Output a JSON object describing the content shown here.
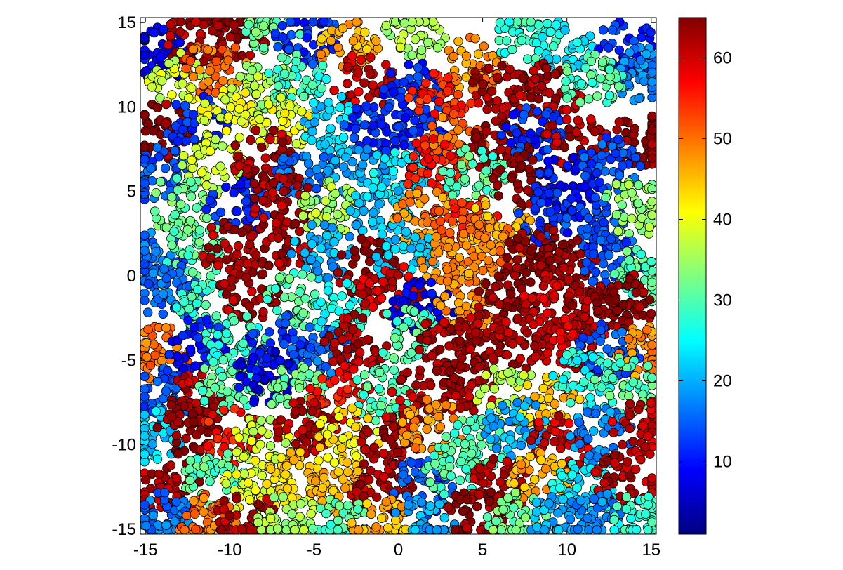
{
  "chart_data": {
    "type": "scatter",
    "title": "",
    "xlabel": "",
    "ylabel": "",
    "xlim": [
      -15.3,
      15.3
    ],
    "ylim": [
      -15.3,
      15.3
    ],
    "grid": false,
    "xticks": [
      -15,
      -10,
      -5,
      0,
      5,
      10,
      15
    ],
    "yticks": [
      -15,
      -10,
      -5,
      0,
      5,
      10,
      15
    ],
    "marker": "filled-circle-black-edge",
    "colormap": "jet",
    "colorbar": {
      "range": [
        1,
        65
      ],
      "ticks": [
        10,
        20,
        30,
        40,
        50,
        60
      ],
      "placement": "right"
    },
    "jet_stops": [
      "#000080",
      "#0000ff",
      "#00ffff",
      "#ffff00",
      "#ff0000",
      "#800000"
    ],
    "clusters": [
      {
        "x": -14.2,
        "y": 13.2,
        "value": 8
      },
      {
        "x": -12.0,
        "y": 14.0,
        "value": 62
      },
      {
        "x": -9.5,
        "y": 14.6,
        "value": 64
      },
      {
        "x": -7.5,
        "y": 14.8,
        "value": 32
      },
      {
        "x": -5.5,
        "y": 14.2,
        "value": 12
      },
      {
        "x": -3.0,
        "y": 13.8,
        "value": 46
      },
      {
        "x": 1.0,
        "y": 14.6,
        "value": 36
      },
      {
        "x": 4.5,
        "y": 12.5,
        "value": 48
      },
      {
        "x": 7.5,
        "y": 14.0,
        "value": 28
      },
      {
        "x": 10.0,
        "y": 13.5,
        "value": 24
      },
      {
        "x": 13.5,
        "y": 13.5,
        "value": 12
      },
      {
        "x": 14.6,
        "y": 12.0,
        "value": 18
      },
      {
        "x": -13.0,
        "y": 11.5,
        "value": 38
      },
      {
        "x": -10.8,
        "y": 12.3,
        "value": 50
      },
      {
        "x": -8.0,
        "y": 11.0,
        "value": 36
      },
      {
        "x": -6.0,
        "y": 11.5,
        "value": 28
      },
      {
        "x": -2.0,
        "y": 11.5,
        "value": 60
      },
      {
        "x": 1.0,
        "y": 11.0,
        "value": 12
      },
      {
        "x": 2.5,
        "y": 10.5,
        "value": 55
      },
      {
        "x": 6.0,
        "y": 11.0,
        "value": 62
      },
      {
        "x": 9.0,
        "y": 11.0,
        "value": 62
      },
      {
        "x": 11.5,
        "y": 11.5,
        "value": 30
      },
      {
        "x": -14.0,
        "y": 8.6,
        "value": 64
      },
      {
        "x": -12.0,
        "y": 9.0,
        "value": 12
      },
      {
        "x": -10.0,
        "y": 9.5,
        "value": 40
      },
      {
        "x": -7.0,
        "y": 9.0,
        "value": 40
      },
      {
        "x": -4.0,
        "y": 9.0,
        "value": 22
      },
      {
        "x": -1.5,
        "y": 8.5,
        "value": 12
      },
      {
        "x": 1.0,
        "y": 8.0,
        "value": 12
      },
      {
        "x": 3.5,
        "y": 8.0,
        "value": 50
      },
      {
        "x": 6.0,
        "y": 7.5,
        "value": 64
      },
      {
        "x": 8.0,
        "y": 8.5,
        "value": 12
      },
      {
        "x": 10.5,
        "y": 8.0,
        "value": 62
      },
      {
        "x": 14.5,
        "y": 8.0,
        "value": 64
      },
      {
        "x": -14.2,
        "y": 6.0,
        "value": 14
      },
      {
        "x": -11.0,
        "y": 6.5,
        "value": 38
      },
      {
        "x": -8.0,
        "y": 7.0,
        "value": 62
      },
      {
        "x": -5.5,
        "y": 6.0,
        "value": 16
      },
      {
        "x": -2.5,
        "y": 6.0,
        "value": 20
      },
      {
        "x": 0.0,
        "y": 6.0,
        "value": 24
      },
      {
        "x": 2.0,
        "y": 6.5,
        "value": 56
      },
      {
        "x": 4.5,
        "y": 6.0,
        "value": 30
      },
      {
        "x": 7.5,
        "y": 5.5,
        "value": 64
      },
      {
        "x": 10.0,
        "y": 5.5,
        "value": 10
      },
      {
        "x": 12.5,
        "y": 6.5,
        "value": 14
      },
      {
        "x": -13.0,
        "y": 4.2,
        "value": 32
      },
      {
        "x": -9.5,
        "y": 4.0,
        "value": 12
      },
      {
        "x": -7.0,
        "y": 4.5,
        "value": 62
      },
      {
        "x": -4.0,
        "y": 4.0,
        "value": 36
      },
      {
        "x": -1.0,
        "y": 4.0,
        "value": 22
      },
      {
        "x": 1.5,
        "y": 3.5,
        "value": 48
      },
      {
        "x": 4.0,
        "y": 3.5,
        "value": 54
      },
      {
        "x": 6.0,
        "y": 3.0,
        "value": 46
      },
      {
        "x": 9.0,
        "y": 3.5,
        "value": 12
      },
      {
        "x": 11.5,
        "y": 3.0,
        "value": 14
      },
      {
        "x": 14.0,
        "y": 4.0,
        "value": 34
      },
      {
        "x": -14.5,
        "y": 1.0,
        "value": 16
      },
      {
        "x": -12.0,
        "y": 1.5,
        "value": 30
      },
      {
        "x": -10.0,
        "y": 1.5,
        "value": 62
      },
      {
        "x": -7.0,
        "y": 2.0,
        "value": 62
      },
      {
        "x": -4.5,
        "y": 1.5,
        "value": 20
      },
      {
        "x": -2.0,
        "y": 0.5,
        "value": 64
      },
      {
        "x": 0.5,
        "y": 1.0,
        "value": 22
      },
      {
        "x": 3.0,
        "y": 1.0,
        "value": 48
      },
      {
        "x": 5.5,
        "y": 1.5,
        "value": 50
      },
      {
        "x": 8.0,
        "y": 1.5,
        "value": 64
      },
      {
        "x": 10.0,
        "y": 0.5,
        "value": 64
      },
      {
        "x": 12.5,
        "y": 1.0,
        "value": 14
      },
      {
        "x": 14.5,
        "y": 0.0,
        "value": 30
      },
      {
        "x": -13.5,
        "y": -1.0,
        "value": 16
      },
      {
        "x": -11.5,
        "y": -2.0,
        "value": 28
      },
      {
        "x": -9.0,
        "y": -1.0,
        "value": 62
      },
      {
        "x": -6.0,
        "y": -1.5,
        "value": 30
      },
      {
        "x": -3.5,
        "y": -2.0,
        "value": 26
      },
      {
        "x": -0.5,
        "y": -1.0,
        "value": 60
      },
      {
        "x": 1.5,
        "y": -2.0,
        "value": 8
      },
      {
        "x": 4.0,
        "y": -1.5,
        "value": 48
      },
      {
        "x": 6.5,
        "y": -1.5,
        "value": 64
      },
      {
        "x": 9.0,
        "y": -1.5,
        "value": 60
      },
      {
        "x": 11.5,
        "y": -2.0,
        "value": 62
      },
      {
        "x": 13.5,
        "y": -1.5,
        "value": 64
      },
      {
        "x": -14.3,
        "y": -4.5,
        "value": 50
      },
      {
        "x": -12.0,
        "y": -4.0,
        "value": 10
      },
      {
        "x": -9.5,
        "y": -4.0,
        "value": 28
      },
      {
        "x": -7.0,
        "y": -4.0,
        "value": 12
      },
      {
        "x": -4.5,
        "y": -4.5,
        "value": 16
      },
      {
        "x": -2.5,
        "y": -4.0,
        "value": 62
      },
      {
        "x": 0.5,
        "y": -3.5,
        "value": 30
      },
      {
        "x": 3.0,
        "y": -4.0,
        "value": 62
      },
      {
        "x": 5.0,
        "y": -4.0,
        "value": 62
      },
      {
        "x": 7.5,
        "y": -4.0,
        "value": 62
      },
      {
        "x": 10.5,
        "y": -4.0,
        "value": 60
      },
      {
        "x": 12.5,
        "y": -4.5,
        "value": 14
      },
      {
        "x": 14.8,
        "y": -4.5,
        "value": 48
      },
      {
        "x": -14.0,
        "y": -7.0,
        "value": 14
      },
      {
        "x": -12.0,
        "y": -7.5,
        "value": 62
      },
      {
        "x": -10.0,
        "y": -6.5,
        "value": 30
      },
      {
        "x": -8.0,
        "y": -6.0,
        "value": 8
      },
      {
        "x": -6.0,
        "y": -7.0,
        "value": 32
      },
      {
        "x": -3.5,
        "y": -7.0,
        "value": 56
      },
      {
        "x": -1.0,
        "y": -7.0,
        "value": 30
      },
      {
        "x": 1.5,
        "y": -7.0,
        "value": 62
      },
      {
        "x": 4.0,
        "y": -6.5,
        "value": 62
      },
      {
        "x": 6.5,
        "y": -7.0,
        "value": 36
      },
      {
        "x": 9.0,
        "y": -7.5,
        "value": 44
      },
      {
        "x": 11.0,
        "y": -6.0,
        "value": 26
      },
      {
        "x": 13.5,
        "y": -6.5,
        "value": 30
      },
      {
        "x": -14.5,
        "y": -9.5,
        "value": 22
      },
      {
        "x": -12.5,
        "y": -9.0,
        "value": 64
      },
      {
        "x": -10.0,
        "y": -9.5,
        "value": 56
      },
      {
        "x": -8.0,
        "y": -10.0,
        "value": 38
      },
      {
        "x": -5.5,
        "y": -9.0,
        "value": 62
      },
      {
        "x": -3.0,
        "y": -9.5,
        "value": 42
      },
      {
        "x": -0.5,
        "y": -9.5,
        "value": 62
      },
      {
        "x": 2.0,
        "y": -9.0,
        "value": 48
      },
      {
        "x": 4.5,
        "y": -10.0,
        "value": 30
      },
      {
        "x": 7.0,
        "y": -9.0,
        "value": 20
      },
      {
        "x": 9.5,
        "y": -10.0,
        "value": 60
      },
      {
        "x": 12.0,
        "y": -9.5,
        "value": 18
      },
      {
        "x": 14.5,
        "y": -9.0,
        "value": 60
      },
      {
        "x": -13.5,
        "y": -12.5,
        "value": 62
      },
      {
        "x": -11.0,
        "y": -12.0,
        "value": 30
      },
      {
        "x": -8.5,
        "y": -12.5,
        "value": 40
      },
      {
        "x": -6.0,
        "y": -12.0,
        "value": 44
      },
      {
        "x": -3.5,
        "y": -12.5,
        "value": 46
      },
      {
        "x": -1.0,
        "y": -12.5,
        "value": 62
      },
      {
        "x": 1.5,
        "y": -12.5,
        "value": 14
      },
      {
        "x": 3.5,
        "y": -11.5,
        "value": 30
      },
      {
        "x": 6.0,
        "y": -12.5,
        "value": 62
      },
      {
        "x": 8.5,
        "y": -12.0,
        "value": 46
      },
      {
        "x": 11.0,
        "y": -12.5,
        "value": 24
      },
      {
        "x": 13.5,
        "y": -12.0,
        "value": 62
      },
      {
        "x": -14.0,
        "y": -14.5,
        "value": 16
      },
      {
        "x": -11.5,
        "y": -14.5,
        "value": 50
      },
      {
        "x": -9.0,
        "y": -14.5,
        "value": 62
      },
      {
        "x": -6.5,
        "y": -14.6,
        "value": 36
      },
      {
        "x": -3.5,
        "y": -14.8,
        "value": 30
      },
      {
        "x": -1.0,
        "y": -14.8,
        "value": 46
      },
      {
        "x": 1.5,
        "y": -14.8,
        "value": 20
      },
      {
        "x": 4.5,
        "y": -14.2,
        "value": 64
      },
      {
        "x": 7.0,
        "y": -14.5,
        "value": 32
      },
      {
        "x": 9.5,
        "y": -14.5,
        "value": 20
      },
      {
        "x": 12.0,
        "y": -14.5,
        "value": 18
      },
      {
        "x": 14.5,
        "y": -14.5,
        "value": 28
      }
    ]
  }
}
